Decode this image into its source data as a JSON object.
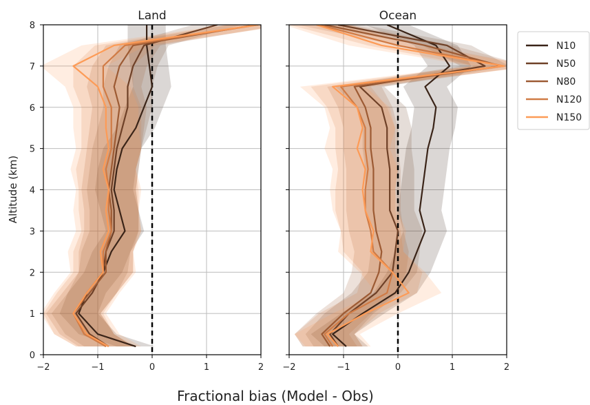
{
  "figure": {
    "xlabel": "Fractional bias (Model - Obs)",
    "ylabel": "Altitude (km)"
  },
  "colors": {
    "N10": "#3a2418",
    "N50": "#6e4027",
    "N80": "#9c5a33",
    "N120": "#d07b45",
    "N150": "#fd9b56",
    "grid": "#bbbbbb",
    "zero_line": "#000000"
  },
  "chart_data": [
    {
      "type": "line",
      "title": "Land",
      "xlabel": "",
      "ylabel": "Altitude (km)",
      "xlim": [
        -2,
        2
      ],
      "ylim": [
        0,
        8
      ],
      "xticks": [
        "−2",
        "−1",
        "0",
        "1",
        "2"
      ],
      "yticks": [
        "0",
        "1",
        "2",
        "3",
        "4",
        "5",
        "6",
        "7",
        "8"
      ],
      "grid": true,
      "reference_line_x": 0,
      "y": [
        0.2,
        0.5,
        1.0,
        1.5,
        2.0,
        2.5,
        3.0,
        3.5,
        4.0,
        4.5,
        5.0,
        5.5,
        6.0,
        6.5,
        7.0,
        7.5,
        8.0
      ],
      "series": [
        {
          "name": "N10",
          "x": [
            -0.3,
            -1.0,
            -1.35,
            -1.2,
            -0.9,
            -0.75,
            -0.5,
            -0.6,
            -0.7,
            -0.65,
            -0.55,
            -0.3,
            -0.15,
            0.0,
            -0.05,
            -0.1,
            -0.1
          ],
          "spread": 0.35
        },
        {
          "name": "N50",
          "x": [
            -0.8,
            -1.15,
            -1.4,
            -1.1,
            -0.9,
            -0.85,
            -0.7,
            -0.7,
            -0.75,
            -0.7,
            -0.65,
            -0.55,
            -0.45,
            -0.45,
            -0.35,
            -0.15,
            1.2
          ],
          "spread": 0.45
        },
        {
          "name": "N80",
          "x": [
            -0.85,
            -1.2,
            -1.45,
            -1.15,
            -0.85,
            -0.85,
            -0.75,
            -0.75,
            -0.8,
            -0.75,
            -0.7,
            -0.65,
            -0.6,
            -0.7,
            -0.6,
            -0.35,
            1.9
          ],
          "spread": 0.5
        },
        {
          "name": "N120",
          "x": [
            -0.85,
            -1.25,
            -1.45,
            -1.2,
            -0.9,
            -0.9,
            -0.75,
            -0.8,
            -0.8,
            -0.85,
            -0.75,
            -0.75,
            -0.75,
            -0.9,
            -0.9,
            -0.5,
            1.95
          ],
          "spread": 0.55
        },
        {
          "name": "N150",
          "x": [
            -0.8,
            -1.2,
            -1.45,
            -1.2,
            -0.9,
            -0.95,
            -0.8,
            -0.85,
            -0.8,
            -0.9,
            -0.8,
            -0.85,
            -0.85,
            -1.0,
            -1.45,
            -0.7,
            1.95
          ],
          "spread": 0.6
        }
      ]
    },
    {
      "type": "line",
      "title": "Ocean",
      "xlabel": "",
      "ylabel": "",
      "xlim": [
        -2,
        2
      ],
      "ylim": [
        0,
        8
      ],
      "xticks": [
        "−2",
        "−1",
        "0",
        "1",
        "2"
      ],
      "yticks": [
        "0",
        "1",
        "2",
        "3",
        "4",
        "5",
        "6",
        "7",
        "8"
      ],
      "grid": true,
      "reference_line_x": 0,
      "y": [
        0.2,
        0.5,
        1.0,
        1.5,
        2.0,
        2.5,
        3.0,
        3.5,
        4.0,
        4.5,
        5.0,
        5.5,
        6.0,
        6.5,
        7.0,
        7.5,
        8.0
      ],
      "series": [
        {
          "name": "N10",
          "x": [
            -0.95,
            -1.2,
            -0.65,
            -0.05,
            0.2,
            0.35,
            0.5,
            0.4,
            0.45,
            0.5,
            0.55,
            0.65,
            0.7,
            0.5,
            0.95,
            0.7,
            -0.2
          ],
          "spread": 0.4
        },
        {
          "name": "N50",
          "x": [
            -1.1,
            -1.25,
            -0.9,
            -0.4,
            -0.1,
            -0.05,
            0.0,
            -0.15,
            -0.15,
            -0.15,
            -0.2,
            -0.2,
            -0.3,
            -0.7,
            1.6,
            0.9,
            -1.1
          ],
          "spread": 0.45
        },
        {
          "name": "N80",
          "x": [
            -1.25,
            -1.4,
            -1.0,
            -0.5,
            -0.35,
            -0.3,
            -0.4,
            -0.45,
            -0.45,
            -0.45,
            -0.5,
            -0.5,
            -0.6,
            -0.8,
            1.9,
            0.5,
            -1.35
          ],
          "spread": 0.5
        },
        {
          "name": "N120",
          "x": [
            -1.2,
            -1.35,
            -0.9,
            -0.2,
            -0.1,
            -0.45,
            -0.5,
            -0.6,
            -0.6,
            -0.55,
            -0.6,
            -0.6,
            -0.75,
            -1.05,
            1.95,
            0.0,
            -1.45
          ],
          "spread": 0.55
        },
        {
          "name": "N150",
          "x": [
            -1.1,
            -1.3,
            -0.6,
            0.2,
            -0.1,
            -0.5,
            -0.45,
            -0.6,
            -0.65,
            -0.6,
            -0.75,
            -0.65,
            -0.75,
            -1.2,
            1.95,
            -0.3,
            -1.5
          ],
          "spread": 0.6
        }
      ]
    }
  ],
  "legend": {
    "placement": "right",
    "entries": [
      "N10",
      "N50",
      "N80",
      "N120",
      "N150"
    ]
  }
}
